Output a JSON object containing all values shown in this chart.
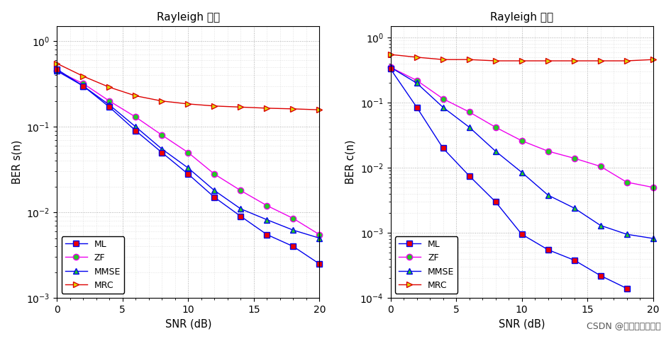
{
  "title": "Rayleigh 信道",
  "snr": [
    0,
    2,
    4,
    6,
    8,
    10,
    12,
    14,
    16,
    18,
    20
  ],
  "plot1_ylabel": "BER s(n)",
  "plot1_ML": [
    0.47,
    0.3,
    0.17,
    0.09,
    0.05,
    0.028,
    0.015,
    0.009,
    0.0055,
    0.004,
    0.0025
  ],
  "plot1_ZF": [
    0.45,
    0.32,
    0.2,
    0.13,
    0.08,
    0.05,
    0.028,
    0.018,
    0.012,
    0.0085,
    0.0055
  ],
  "plot1_MMSE": [
    0.45,
    0.3,
    0.18,
    0.1,
    0.055,
    0.033,
    0.018,
    0.011,
    0.0082,
    0.0062,
    0.005
  ],
  "plot1_MRC": [
    0.55,
    0.39,
    0.29,
    0.23,
    0.2,
    0.185,
    0.175,
    0.17,
    0.165,
    0.162,
    0.158
  ],
  "plot1_ylim": [
    0.001,
    1.5
  ],
  "plot2_ylabel": "BER c(n)",
  "plot2_ML": [
    0.33,
    0.085,
    0.02,
    0.0075,
    0.003,
    0.00095,
    0.00055,
    0.00038,
    0.00022,
    0.00014,
    null
  ],
  "plot2_ZF": [
    0.35,
    0.22,
    0.115,
    0.072,
    0.042,
    0.026,
    0.018,
    0.014,
    0.0105,
    0.006,
    0.005
  ],
  "plot2_MMSE": [
    0.35,
    0.2,
    0.085,
    0.042,
    0.018,
    0.0085,
    0.0038,
    0.0024,
    0.0013,
    0.00095,
    0.00082
  ],
  "plot2_MRC": [
    0.55,
    0.5,
    0.46,
    0.46,
    0.44,
    0.44,
    0.44,
    0.44,
    0.44,
    0.44,
    0.46
  ],
  "plot2_ylim": [
    0.0001,
    1.5
  ],
  "color_ML": "#0000EE",
  "color_ZF": "#EE00EE",
  "color_MMSE": "#0000EE",
  "color_MRC": "#DD0000",
  "marker_ML": "s",
  "marker_ZF": "o",
  "marker_MMSE": "^",
  "marker_MRC": ">",
  "mfc_ML": "#EE0000",
  "mfc_ZF": "#22CC22",
  "mfc_MMSE": "#22CC22",
  "mfc_MRC": "#DDDD00",
  "ms": 6,
  "lw": 1.0,
  "watermark": "CSDN @简简单单做算法",
  "bg_color": "#F2F2F2"
}
